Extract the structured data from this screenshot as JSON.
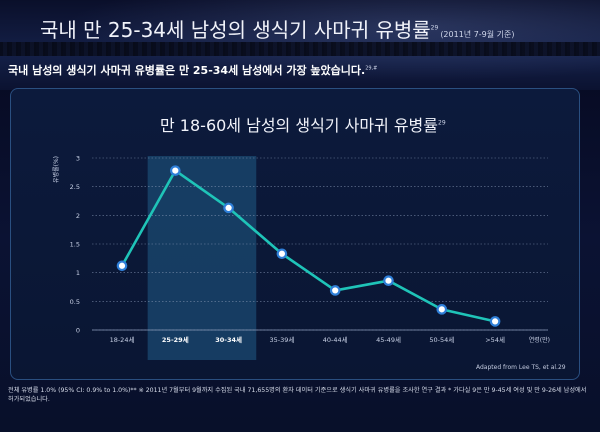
{
  "header": {
    "title": "국내 만 25-34세 남성의 생식기 사마귀 유병률",
    "title_sup": "29",
    "title_date": "(2011년 7-9월 기준)",
    "subtitle": "국내 남성의 생식기 사마귀 유병률은 만 25-34세 남성에서 가장 높았습니다.",
    "subtitle_sup": "29,#"
  },
  "chart_data": {
    "type": "line",
    "title": "만 18-60세 남성의 생식기 사마귀 유병률",
    "title_sup": "29",
    "ylabel": "유병률(%)",
    "xlabel": "연령(만)",
    "categories": [
      "18-24세",
      "25-29세",
      "30-34세",
      "35-39세",
      "40-44세",
      "45-49세",
      "50-54세",
      ">54세"
    ],
    "series": [
      {
        "values": [
          1.12,
          2.78,
          2.13,
          1.33,
          0.69,
          0.86,
          0.36,
          0.15
        ]
      }
    ],
    "yticks": [
      "0",
      "0.5",
      "1",
      "1.5",
      "2",
      "2.5",
      "3"
    ],
    "ylim": [
      0,
      3
    ],
    "highlight_categories": [
      "25-29세",
      "30-34세"
    ],
    "grid": true,
    "line_color": "#1fc4b8",
    "marker_color": "#2f7fd8"
  },
  "credit": "Adapted from Lee TS, et al.29",
  "footnote": "전체 유병률 1.0% (95% CI: 0.9% to 1.0%)** ※ 2011년 7월부터 9월까지 수집된 국내 71,655명의 환자 데이터 기준으로 생식기 사마귀 유병률을 조사한 연구 결과 * 가다실 9은 만 9-45세 여성 및 만 9-26세 남성에서 허가되었습니다."
}
